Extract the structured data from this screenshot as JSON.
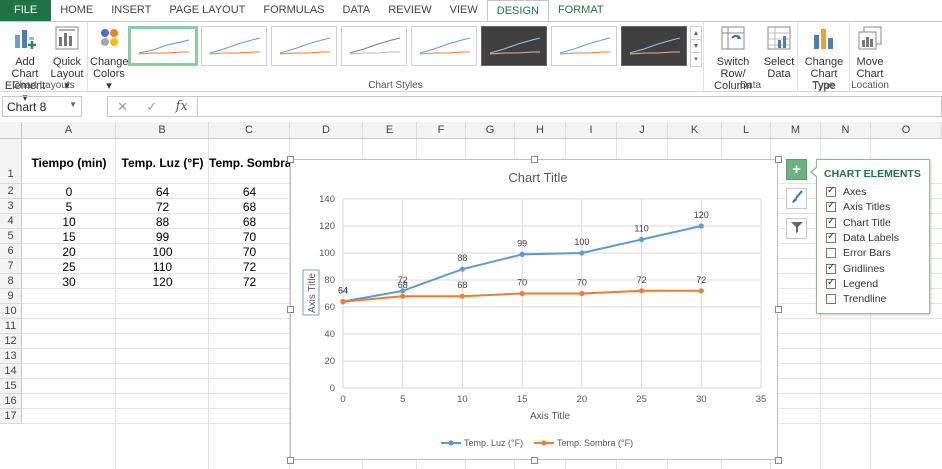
{
  "tabs": [
    "FILE",
    "HOME",
    "INSERT",
    "PAGE LAYOUT",
    "FORMULAS",
    "DATA",
    "REVIEW",
    "VIEW",
    "DESIGN",
    "FORMAT"
  ],
  "ribbon": {
    "add_chart_element": [
      "Add Chart",
      "Element ▾"
    ],
    "quick_layout": [
      "Quick",
      "Layout ▾"
    ],
    "change_colors": [
      "Change",
      "Colors ▾"
    ],
    "switch_row_col": [
      "Switch Row/",
      "Column"
    ],
    "select_data": [
      "Select",
      "Data"
    ],
    "change_chart_type": [
      "Change",
      "Chart Type"
    ],
    "move_chart": [
      "Move",
      "Chart"
    ],
    "group_labels": {
      "chart_layouts": "Chart Layouts",
      "chart_styles": "Chart Styles",
      "data": "Data",
      "type": "Type",
      "location": "Location"
    }
  },
  "namebox": "Chart 8",
  "formula_icons": {
    "cancel": "✕",
    "enter": "✓",
    "fx": "fx"
  },
  "columns": [
    "A",
    "B",
    "C",
    "D",
    "E",
    "F",
    "G",
    "H",
    "I",
    "J",
    "K",
    "L",
    "M",
    "N",
    "O"
  ],
  "rows": [
    "1",
    "2",
    "3",
    "4",
    "5",
    "6",
    "7",
    "8",
    "9",
    "10",
    "11",
    "12",
    "13",
    "14",
    "15",
    "16",
    "17"
  ],
  "table": {
    "headers": [
      "Tiempo (min)",
      "Temp. Luz (°F)",
      "Temp. Sombra"
    ],
    "rows": [
      [
        "0",
        "64",
        "64"
      ],
      [
        "5",
        "72",
        "68"
      ],
      [
        "10",
        "88",
        "68"
      ],
      [
        "15",
        "99",
        "70"
      ],
      [
        "20",
        "100",
        "70"
      ],
      [
        "25",
        "110",
        "72"
      ],
      [
        "30",
        "120",
        "72"
      ]
    ]
  },
  "chart_data": {
    "type": "scatter",
    "title": "Chart Title",
    "xlabel": "Axis Title",
    "ylabel": "Axis Title",
    "xlim": [
      0,
      35
    ],
    "ylim": [
      0,
      140
    ],
    "xticks": [
      "0",
      "5",
      "10",
      "15",
      "20",
      "25",
      "30",
      "35"
    ],
    "yticks": [
      "0",
      "20",
      "40",
      "60",
      "80",
      "100",
      "120",
      "140"
    ],
    "grid": true,
    "legend": "bottom",
    "data_labels": true,
    "series": [
      {
        "name": "Temp. Luz (°F)",
        "color": "#5b9bd5",
        "x": [
          0,
          5,
          10,
          15,
          20,
          25,
          30
        ],
        "y": [
          64,
          72,
          88,
          99,
          100,
          110,
          120
        ]
      },
      {
        "name": "Temp. Sombra (°F)",
        "color": "#ed7d31",
        "x": [
          0,
          5,
          10,
          15,
          20,
          25,
          30
        ],
        "y": [
          64,
          68,
          68,
          70,
          70,
          72,
          72
        ]
      }
    ]
  },
  "chart_elements": {
    "title": "CHART ELEMENTS",
    "items": [
      {
        "label": "Axes",
        "checked": true
      },
      {
        "label": "Axis Titles",
        "checked": true
      },
      {
        "label": "Chart Title",
        "checked": true
      },
      {
        "label": "Data Labels",
        "checked": true
      },
      {
        "label": "Error Bars",
        "checked": false
      },
      {
        "label": "Gridlines",
        "checked": true
      },
      {
        "label": "Legend",
        "checked": true
      },
      {
        "label": "Trendline",
        "checked": false
      }
    ]
  },
  "side_icons": [
    "plus-icon",
    "brush-icon",
    "filter-icon"
  ],
  "colors": {
    "excel_green": "#217346"
  }
}
